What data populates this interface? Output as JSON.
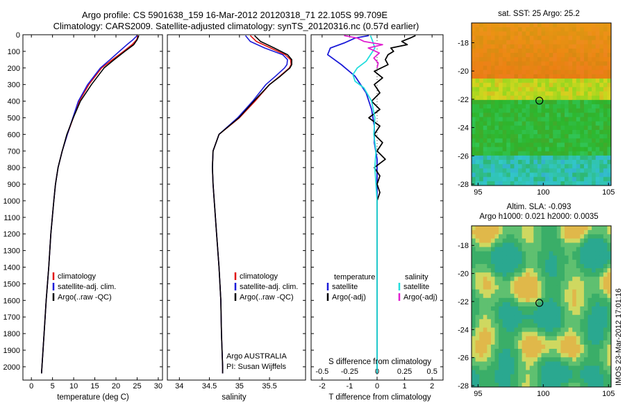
{
  "header": {
    "line1": "Argo profile: CS 5901638_159 16-Mar-2012 20120318_71 22.105S 99.709E",
    "line2": "Climatology: CARS2009. Satellite-adjusted climatology: synTS_20120316.nc (0.57d earlier)"
  },
  "colors": {
    "climatology": "#e01010",
    "satellite": "#1a1ad8",
    "argo": "#000000",
    "salinity_satellite": "#22dddd",
    "salinity_argo": "#e020d0"
  },
  "chart_data": [
    {
      "type": "line",
      "xlabel": "temperature (deg C)",
      "ylabel": "",
      "xlim": [
        -2,
        31
      ],
      "ylim": [
        2080,
        0
      ],
      "xticks": [
        "0",
        "5",
        "10",
        "15",
        "20",
        "25",
        "30"
      ],
      "xtick_values": [
        0,
        5,
        10,
        15,
        20,
        25,
        30
      ],
      "yticks": [
        "0",
        "100",
        "200",
        "300",
        "400",
        "500",
        "600",
        "700",
        "800",
        "900",
        "1000",
        "1100",
        "1200",
        "1300",
        "1400",
        "1500",
        "1600",
        "1700",
        "1800",
        "1900",
        "2000"
      ],
      "ytick_values": [
        0,
        100,
        200,
        300,
        400,
        500,
        600,
        700,
        800,
        900,
        1000,
        1100,
        1200,
        1300,
        1400,
        1500,
        1600,
        1700,
        1800,
        1900,
        2000
      ],
      "legend": [
        "climatology",
        "satellite-adj. clim.",
        "Argo(..raw -QC)"
      ],
      "series": [
        {
          "name": "climatology",
          "depth": [
            5,
            30,
            60,
            100,
            150,
            200,
            300,
            400,
            500,
            600,
            700,
            800,
            900,
            1000,
            1200,
            1400,
            1600,
            1800,
            2000,
            2040
          ],
          "values": [
            25.2,
            24.9,
            23.8,
            21.8,
            19.2,
            16.6,
            13.6,
            11.3,
            9.9,
            8.5,
            7.3,
            6.3,
            5.7,
            5.3,
            4.6,
            4.1,
            3.5,
            3.0,
            2.5,
            2.4
          ]
        },
        {
          "name": "satellite-adj. clim.",
          "depth": [
            5,
            30,
            60,
            100,
            150,
            200,
            300,
            400,
            500,
            600,
            700,
            800,
            900,
            1000,
            1200,
            1400,
            1600,
            1800,
            2000,
            2040
          ],
          "values": [
            25.0,
            24.0,
            22.6,
            20.8,
            18.6,
            16.3,
            13.3,
            11.1,
            9.8,
            8.5,
            7.3,
            6.3,
            5.7,
            5.3,
            4.6,
            4.1,
            3.5,
            3.0,
            2.5,
            2.4
          ]
        },
        {
          "name": "Argo(..raw -QC)",
          "depth": [
            5,
            30,
            60,
            100,
            150,
            200,
            300,
            400,
            500,
            600,
            700,
            800,
            900,
            1000,
            1200,
            1400,
            1600,
            1800,
            2000,
            2040
          ],
          "values": [
            25.4,
            25.0,
            24.2,
            22.1,
            19.6,
            17.2,
            14.2,
            11.6,
            9.9,
            8.4,
            7.3,
            6.3,
            5.7,
            5.3,
            4.6,
            4.1,
            3.5,
            3.0,
            2.5,
            2.4
          ]
        }
      ]
    },
    {
      "type": "line",
      "xlabel": "salinity",
      "xlim": [
        33.8,
        36.1
      ],
      "ylim": [
        2080,
        0
      ],
      "xticks": [
        "34",
        "34.5",
        "35",
        "35.5"
      ],
      "xtick_values": [
        34,
        34.5,
        35,
        35.5
      ],
      "legend": [
        "climatology",
        "satellite-adj. clim.",
        "Argo(..raw -QC)"
      ],
      "annotations": [
        "Argo AUSTRALIA",
        "PI: Susan Wijffels"
      ],
      "series": [
        {
          "name": "climatology",
          "depth": [
            5,
            40,
            80,
            120,
            150,
            180,
            200,
            250,
            300,
            400,
            500,
            600,
            700,
            800,
            900,
            1000,
            1200,
            1400,
            1600,
            1800,
            2000,
            2040
          ],
          "values": [
            35.18,
            35.28,
            35.52,
            35.76,
            35.85,
            35.86,
            35.83,
            35.67,
            35.5,
            35.26,
            35.0,
            34.66,
            34.56,
            34.55,
            34.56,
            34.58,
            34.62,
            34.66,
            34.69,
            34.7,
            34.72,
            34.72
          ]
        },
        {
          "name": "satellite-adj. clim.",
          "depth": [
            5,
            40,
            80,
            120,
            150,
            180,
            200,
            250,
            300,
            400,
            500,
            600,
            700,
            800,
            900,
            1000,
            1200,
            1400,
            1600,
            1800,
            2000,
            2040
          ],
          "values": [
            35.1,
            35.18,
            35.42,
            35.72,
            35.8,
            35.79,
            35.75,
            35.6,
            35.44,
            35.22,
            34.97,
            34.66,
            34.56,
            34.55,
            34.56,
            34.58,
            34.62,
            34.66,
            34.69,
            34.7,
            34.72,
            34.72
          ]
        },
        {
          "name": "Argo(..raw -QC)",
          "depth": [
            5,
            40,
            80,
            120,
            150,
            180,
            200,
            250,
            300,
            400,
            500,
            600,
            700,
            800,
            900,
            1000,
            1200,
            1400,
            1600,
            1800,
            2000,
            2040
          ],
          "values": [
            35.25,
            35.35,
            35.58,
            35.8,
            35.87,
            35.87,
            35.84,
            35.68,
            35.5,
            35.24,
            34.99,
            34.66,
            34.56,
            34.55,
            34.56,
            34.58,
            34.62,
            34.66,
            34.69,
            34.7,
            34.72,
            34.72
          ]
        }
      ]
    },
    {
      "type": "line",
      "xlabel": "T difference from climatology",
      "xlabel_top": "S difference from climatology",
      "xlim_T": [
        -2.4,
        2.4
      ],
      "xlim_S": [
        -0.6,
        0.6
      ],
      "ylim": [
        2080,
        0
      ],
      "xticks": [
        "-2",
        "-1",
        "0",
        "1",
        "2"
      ],
      "xtick_values": [
        -2,
        -1,
        0,
        1,
        2
      ],
      "xticks_S": [
        "-0.5",
        "-0.25",
        "0",
        "0.25",
        "0.5"
      ],
      "xtick_values_S": [
        -0.5,
        -0.25,
        0,
        0.25,
        0.5
      ],
      "legend_titles": [
        "temperature",
        "salinity"
      ],
      "legend_T": [
        "satellite",
        "Argo(-adj)"
      ],
      "legend_S": [
        "satellite",
        "Argo(-adj)"
      ],
      "series": [
        {
          "name": "temperature satellite",
          "kind": "T",
          "depth": [
            5,
            20,
            50,
            80,
            120,
            180,
            250,
            350,
            450,
            550,
            650,
            750,
            850,
            950,
            1100,
            1300,
            1500,
            1700,
            1900,
            2040
          ],
          "values": [
            -0.3,
            -0.8,
            -1.2,
            -1.7,
            -1.8,
            -1.3,
            -0.8,
            -0.4,
            -0.2,
            -0.1,
            -0.1,
            0,
            0,
            0,
            0,
            0,
            0,
            0,
            0,
            0
          ]
        },
        {
          "name": "temperature Argo(-adj)",
          "kind": "T",
          "depth": [
            5,
            20,
            40,
            60,
            80,
            100,
            120,
            150,
            180,
            220,
            260,
            300,
            350,
            400,
            450,
            500,
            550,
            600,
            650,
            700,
            750,
            800,
            850,
            900,
            950,
            1000,
            1200,
            1500,
            1800,
            2040
          ],
          "values": [
            1.4,
            1.2,
            0.9,
            1.1,
            0.5,
            0.6,
            0.4,
            0.3,
            0.4,
            -0.1,
            0.2,
            -0.1,
            0.1,
            -0.2,
            0.1,
            -0.3,
            0.1,
            -0.1,
            0.2,
            0,
            0.3,
            -0.1,
            0.1,
            0,
            0.1,
            0,
            0,
            0,
            0,
            0
          ]
        },
        {
          "name": "salinity satellite",
          "kind": "S",
          "depth": [
            5,
            40,
            80,
            120,
            160,
            200,
            240,
            280,
            320,
            400,
            500,
            600,
            700,
            800,
            900,
            1000,
            1200,
            1500,
            1800,
            2040
          ],
          "values": [
            -0.06,
            -0.04,
            -0.02,
            -0.06,
            -0.1,
            -0.18,
            -0.22,
            -0.2,
            -0.12,
            -0.05,
            -0.02,
            -0.03,
            -0.01,
            -0.02,
            -0.01,
            0,
            0,
            0,
            0,
            0
          ]
        },
        {
          "name": "salinity Argo(-adj)",
          "kind": "S",
          "depth": [
            5,
            20,
            40,
            60,
            80,
            110,
            140,
            170,
            200
          ],
          "values": [
            -0.3,
            -0.18,
            -0.12,
            0.05,
            -0.08,
            0.02,
            -0.03,
            0.01,
            0
          ]
        }
      ]
    },
    {
      "type": "heatmap",
      "title": "sat. SST: 25 Argo: 25.2",
      "xlim": [
        94.5,
        105.2
      ],
      "ylim": [
        -28.1,
        -16.6
      ],
      "xticks": [
        "95",
        "100",
        "105"
      ],
      "xtick_values": [
        95,
        100,
        105
      ],
      "yticks": [
        "-18",
        "-20",
        "-22",
        "-24",
        "-26",
        "-28"
      ],
      "ytick_values": [
        -18,
        -20,
        -22,
        -24,
        -26,
        -28
      ],
      "marker": [
        99.7,
        -22.1
      ]
    },
    {
      "type": "heatmap",
      "title": "Altim. SLA: -0.093",
      "subtitle": "Argo h1000: 0.021 h2000: 0.0035",
      "xlim": [
        94.5,
        105.2
      ],
      "ylim": [
        -28.1,
        -16.6
      ],
      "xticks": [
        "95",
        "100",
        "105"
      ],
      "xtick_values": [
        95,
        100,
        105
      ],
      "yticks": [
        "-18",
        "-20",
        "-22",
        "-24",
        "-26",
        "-28"
      ],
      "ytick_values": [
        -18,
        -20,
        -22,
        -24,
        -26,
        -28
      ],
      "marker": [
        99.7,
        -22.1
      ]
    }
  ],
  "stamp": "IMOS 23-Mar-2012 17:01:16"
}
